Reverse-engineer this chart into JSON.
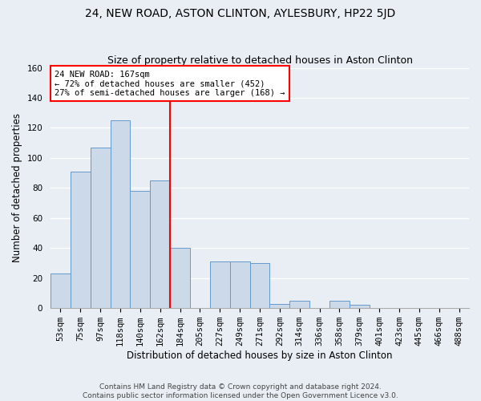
{
  "title": "24, NEW ROAD, ASTON CLINTON, AYLESBURY, HP22 5JD",
  "subtitle": "Size of property relative to detached houses in Aston Clinton",
  "xlabel": "Distribution of detached houses by size in Aston Clinton",
  "ylabel": "Number of detached properties",
  "categories": [
    "53sqm",
    "75sqm",
    "97sqm",
    "118sqm",
    "140sqm",
    "162sqm",
    "184sqm",
    "205sqm",
    "227sqm",
    "249sqm",
    "271sqm",
    "292sqm",
    "314sqm",
    "336sqm",
    "358sqm",
    "379sqm",
    "401sqm",
    "423sqm",
    "445sqm",
    "466sqm",
    "488sqm"
  ],
  "values": [
    23,
    91,
    107,
    125,
    78,
    85,
    40,
    0,
    31,
    31,
    30,
    3,
    5,
    0,
    5,
    2,
    0,
    0,
    0,
    0,
    0
  ],
  "bar_color": "#ccd9e8",
  "bar_edgecolor": "#6699cc",
  "property_line_x": 5.5,
  "annotation_text": "24 NEW ROAD: 167sqm\n← 72% of detached houses are smaller (452)\n27% of semi-detached houses are larger (168) →",
  "annotation_box_color": "white",
  "annotation_box_edgecolor": "red",
  "vline_color": "red",
  "ylim": [
    0,
    160
  ],
  "yticks": [
    0,
    20,
    40,
    60,
    80,
    100,
    120,
    140,
    160
  ],
  "background_color": "#e8eef4",
  "axes_background": "#e8eef4",
  "grid_color": "white",
  "footer": "Contains HM Land Registry data © Crown copyright and database right 2024.\nContains public sector information licensed under the Open Government Licence v3.0.",
  "title_fontsize": 10,
  "subtitle_fontsize": 9,
  "xlabel_fontsize": 8.5,
  "ylabel_fontsize": 8.5,
  "tick_fontsize": 7.5,
  "footer_fontsize": 6.5
}
